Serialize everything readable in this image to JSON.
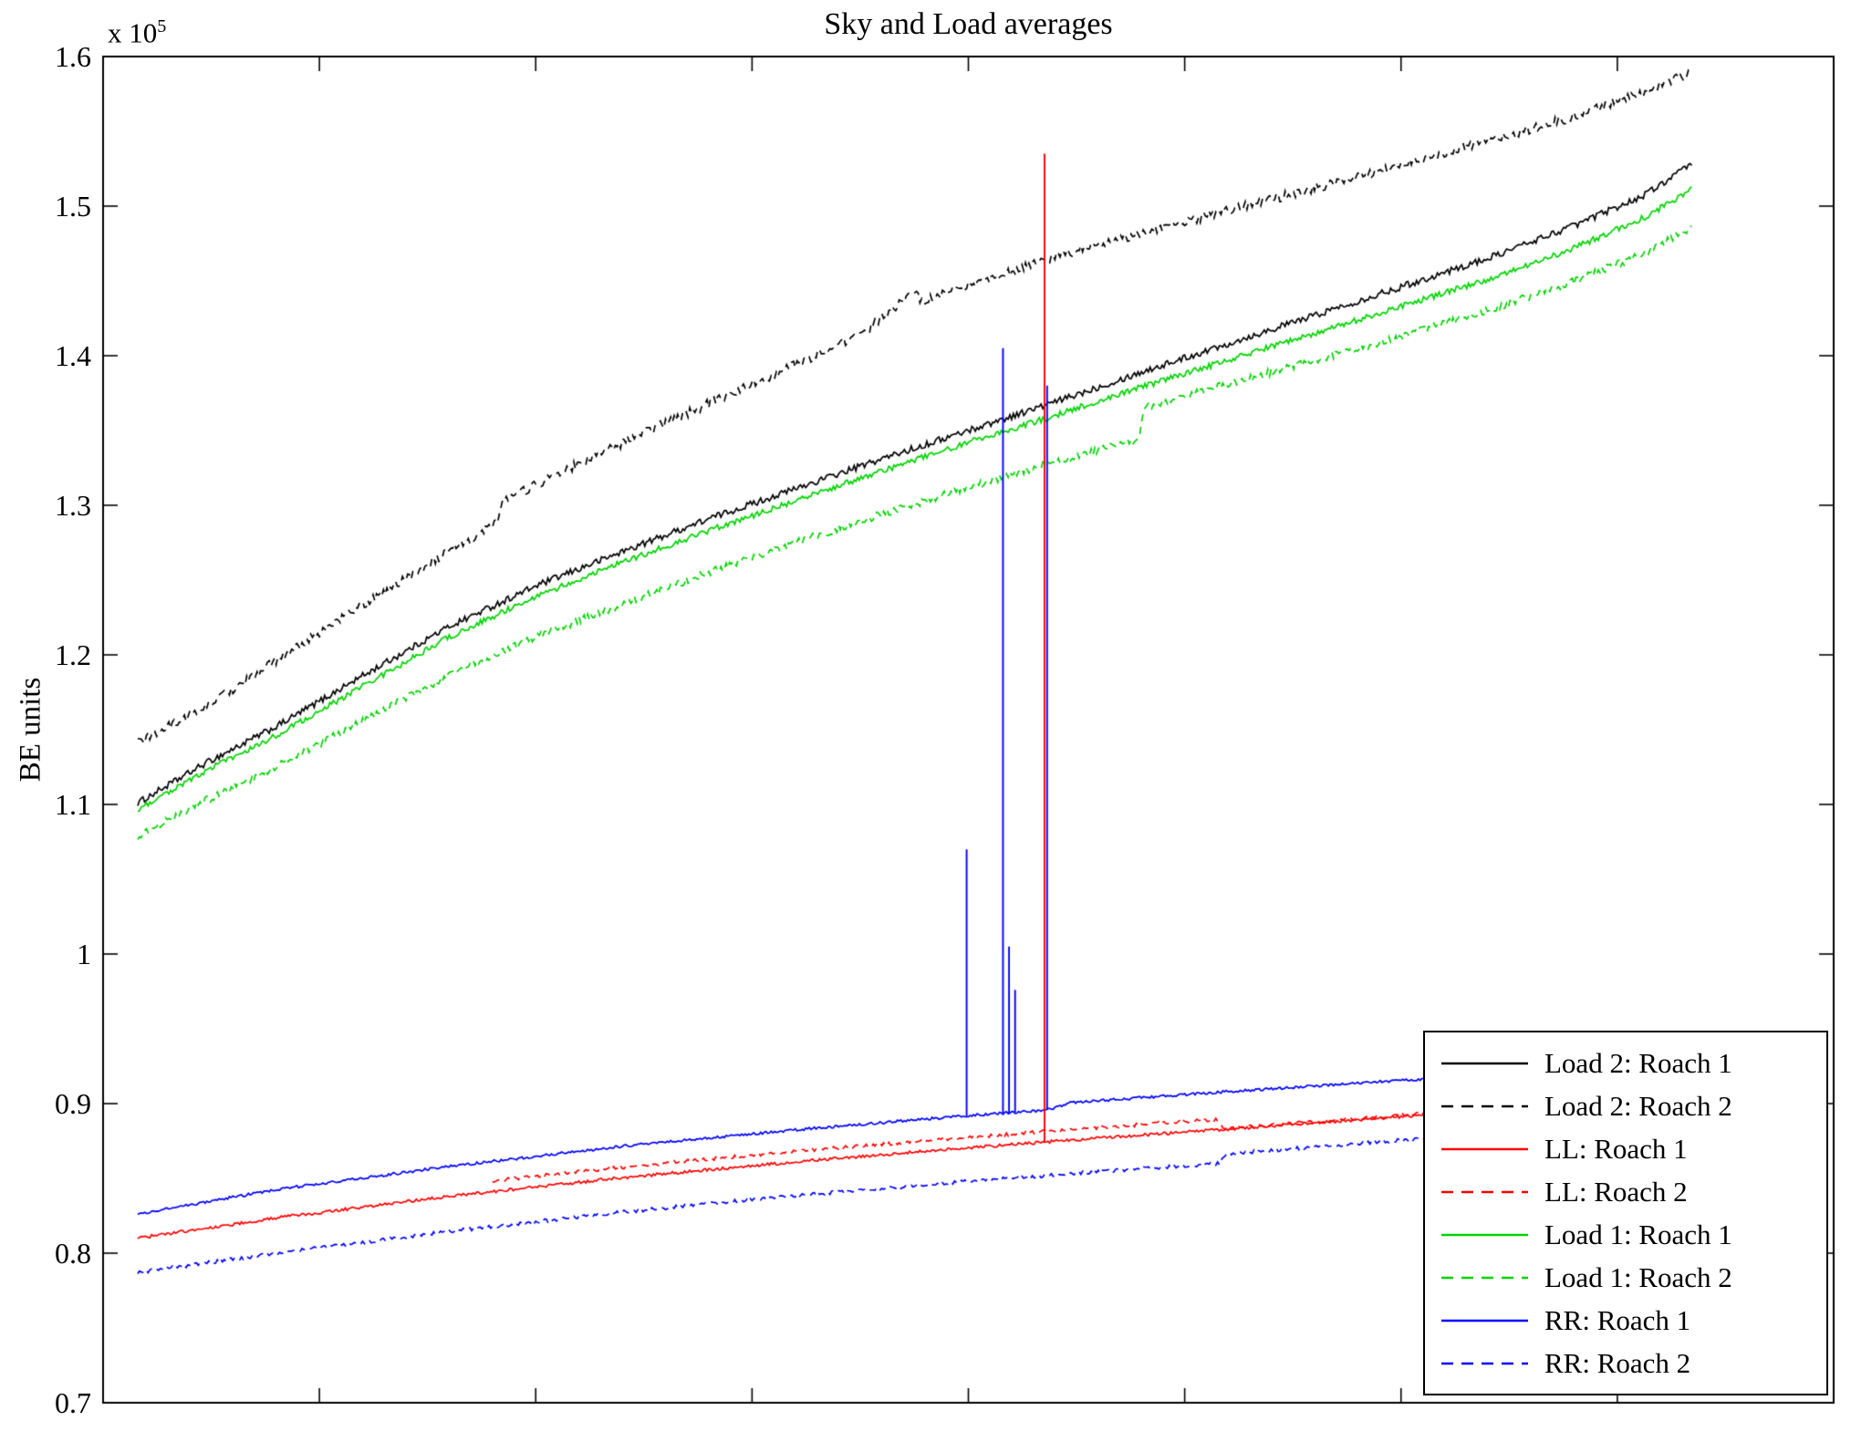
{
  "figure": {
    "title": "Sky and Load averages",
    "y_axis_label": "BE units",
    "offset_label": "x 10",
    "offset_exponent": "5"
  },
  "axes": {
    "y_tick_labels_top_to_bottom": [
      "1.6",
      "1.5",
      "1.4",
      "1.3",
      "1.2",
      "1.1",
      "1",
      "0.9",
      "0.8",
      "0.7"
    ],
    "y_min": 0.7,
    "y_max": 1.6
  },
  "legend": {
    "position": "bottom-right-inside",
    "entries": [
      {
        "label": "Load 2: Roach 1",
        "color": "#000000",
        "style": "solid"
      },
      {
        "label": "Load 2: Roach 2",
        "color": "#000000",
        "style": "dashed"
      },
      {
        "label": "LL: Roach 1",
        "color": "#ff0000",
        "style": "solid"
      },
      {
        "label": "LL: Roach 2",
        "color": "#ff0000",
        "style": "dashed"
      },
      {
        "label": "Load 1: Roach 1",
        "color": "#00d400",
        "style": "solid"
      },
      {
        "label": "Load 1: Roach 2",
        "color": "#00d400",
        "style": "dashed"
      },
      {
        "label": "RR: Roach 1",
        "color": "#0000ff",
        "style": "solid"
      },
      {
        "label": "RR: Roach 2",
        "color": "#0000ff",
        "style": "dashed"
      }
    ]
  },
  "chart_data": {
    "type": "line",
    "title": "Sky and Load averages",
    "xlabel": "",
    "ylabel": "BE units",
    "y_multiplier": "1e5",
    "ylim": [
      0.7,
      1.6
    ],
    "grid": false,
    "x_units": "fraction of visible x range (no x tick labels shown)",
    "series": [
      {
        "name": "Load 2: Roach 1",
        "color": "#000000",
        "style": "solid",
        "noise": 0.0022,
        "points": [
          [
            0.02,
            1.101
          ],
          [
            0.06,
            1.128
          ],
          [
            0.1,
            1.152
          ],
          [
            0.15,
            1.186
          ],
          [
            0.2,
            1.219
          ],
          [
            0.25,
            1.246
          ],
          [
            0.3,
            1.269
          ],
          [
            0.35,
            1.291
          ],
          [
            0.4,
            1.311
          ],
          [
            0.45,
            1.331
          ],
          [
            0.5,
            1.35
          ],
          [
            0.55,
            1.369
          ],
          [
            0.6,
            1.389
          ],
          [
            0.65,
            1.408
          ],
          [
            0.7,
            1.427
          ],
          [
            0.75,
            1.446
          ],
          [
            0.8,
            1.465
          ],
          [
            0.85,
            1.487
          ],
          [
            0.89,
            1.507
          ],
          [
            0.918,
            1.528
          ]
        ],
        "spikes": []
      },
      {
        "name": "Load 2: Roach 2",
        "color": "#000000",
        "style": "dashed",
        "noise": 0.0032,
        "points": [
          [
            0.02,
            1.141
          ],
          [
            0.06,
            1.166
          ],
          [
            0.1,
            1.196
          ],
          [
            0.14,
            1.226
          ],
          [
            0.18,
            1.255
          ],
          [
            0.22,
            1.283
          ],
          [
            0.2285,
            1.291
          ],
          [
            0.2295,
            1.302
          ],
          [
            0.27,
            1.325
          ],
          [
            0.31,
            1.347
          ],
          [
            0.35,
            1.368
          ],
          [
            0.4,
            1.394
          ],
          [
            0.44,
            1.416
          ],
          [
            0.468,
            1.442
          ],
          [
            0.47,
            1.444
          ],
          [
            0.4715,
            1.436
          ],
          [
            0.5,
            1.447
          ],
          [
            0.55,
            1.466
          ],
          [
            0.6,
            1.482
          ],
          [
            0.65,
            1.497
          ],
          [
            0.7,
            1.512
          ],
          [
            0.75,
            1.527
          ],
          [
            0.8,
            1.543
          ],
          [
            0.85,
            1.56
          ],
          [
            0.89,
            1.576
          ],
          [
            0.918,
            1.59
          ]
        ],
        "spikes": []
      },
      {
        "name": "LL: Roach 1",
        "color": "#ff0000",
        "style": "solid",
        "noise": 0.001,
        "points": [
          [
            0.02,
            0.81
          ],
          [
            0.1,
            0.8235
          ],
          [
            0.2,
            0.838
          ],
          [
            0.3,
            0.8505
          ],
          [
            0.4,
            0.861
          ],
          [
            0.5,
            0.8705
          ],
          [
            0.6,
            0.879
          ],
          [
            0.7,
            0.887
          ],
          [
            0.8,
            0.8955
          ],
          [
            0.85,
            0.9
          ],
          [
            0.918,
            0.906
          ]
        ],
        "spikes": [
          [
            0.544,
            1.535
          ]
        ]
      },
      {
        "name": "LL: Roach 2",
        "color": "#ff0000",
        "style": "dashed",
        "noise": 0.0012,
        "points": [
          [
            0.225,
            0.8485
          ],
          [
            0.3,
            0.8575
          ],
          [
            0.4,
            0.868
          ],
          [
            0.5,
            0.8775
          ],
          [
            0.6,
            0.886
          ],
          [
            0.643,
            0.8895
          ],
          [
            0.647,
            0.883
          ],
          [
            0.7,
            0.888
          ],
          [
            0.8,
            0.8965
          ],
          [
            0.85,
            0.901
          ],
          [
            0.918,
            0.907
          ]
        ],
        "spikes": []
      },
      {
        "name": "Load 1: Roach 1",
        "color": "#00d400",
        "style": "solid",
        "noise": 0.002,
        "points": [
          [
            0.02,
            1.097
          ],
          [
            0.06,
            1.123
          ],
          [
            0.1,
            1.146
          ],
          [
            0.15,
            1.179
          ],
          [
            0.2,
            1.212
          ],
          [
            0.25,
            1.239
          ],
          [
            0.3,
            1.262
          ],
          [
            0.35,
            1.283
          ],
          [
            0.4,
            1.303
          ],
          [
            0.45,
            1.323
          ],
          [
            0.5,
            1.342
          ],
          [
            0.55,
            1.36
          ],
          [
            0.6,
            1.379
          ],
          [
            0.65,
            1.397
          ],
          [
            0.7,
            1.415
          ],
          [
            0.75,
            1.433
          ],
          [
            0.8,
            1.451
          ],
          [
            0.85,
            1.472
          ],
          [
            0.89,
            1.492
          ],
          [
            0.918,
            1.511
          ]
        ],
        "spikes": []
      },
      {
        "name": "Load 1: Roach 2",
        "color": "#00d400",
        "style": "dashed",
        "noise": 0.0026,
        "points": [
          [
            0.02,
            1.079
          ],
          [
            0.06,
            1.103
          ],
          [
            0.1,
            1.125
          ],
          [
            0.15,
            1.156
          ],
          [
            0.2,
            1.186
          ],
          [
            0.25,
            1.212
          ],
          [
            0.3,
            1.234
          ],
          [
            0.35,
            1.255
          ],
          [
            0.4,
            1.275
          ],
          [
            0.45,
            1.294
          ],
          [
            0.5,
            1.312
          ],
          [
            0.55,
            1.329
          ],
          [
            0.598,
            1.344
          ],
          [
            0.602,
            1.366
          ],
          [
            0.65,
            1.381
          ],
          [
            0.7,
            1.397
          ],
          [
            0.75,
            1.413
          ],
          [
            0.8,
            1.43
          ],
          [
            0.85,
            1.45
          ],
          [
            0.89,
            1.468
          ],
          [
            0.918,
            1.486
          ]
        ],
        "spikes": []
      },
      {
        "name": "RR: Roach 1",
        "color": "#0000ff",
        "style": "solid",
        "noise": 0.0009,
        "points": [
          [
            0.02,
            0.826
          ],
          [
            0.1,
            0.8425
          ],
          [
            0.2,
            0.858
          ],
          [
            0.3,
            0.8715
          ],
          [
            0.4,
            0.8825
          ],
          [
            0.5,
            0.892
          ],
          [
            0.545,
            0.8955
          ],
          [
            0.558,
            0.9005
          ],
          [
            0.65,
            0.908
          ],
          [
            0.765,
            0.9165
          ],
          [
            0.85,
            0.9225
          ],
          [
            0.918,
            0.927
          ]
        ],
        "spikes": [
          [
            0.499,
            1.07
          ],
          [
            0.52,
            1.405
          ],
          [
            0.5235,
            1.005
          ],
          [
            0.527,
            0.976
          ],
          [
            0.5455,
            1.38
          ]
        ]
      },
      {
        "name": "RR: Roach 2",
        "color": "#0000ff",
        "style": "dashed",
        "noise": 0.0012,
        "points": [
          [
            0.02,
            0.787
          ],
          [
            0.1,
            0.8
          ],
          [
            0.2,
            0.8145
          ],
          [
            0.3,
            0.8275
          ],
          [
            0.4,
            0.8385
          ],
          [
            0.5,
            0.848
          ],
          [
            0.6,
            0.8565
          ],
          [
            0.645,
            0.86
          ],
          [
            0.65,
            0.8665
          ],
          [
            0.7,
            0.871
          ],
          [
            0.8,
            0.88
          ],
          [
            0.85,
            0.8845
          ],
          [
            0.918,
            0.89
          ]
        ],
        "spikes": []
      }
    ]
  }
}
